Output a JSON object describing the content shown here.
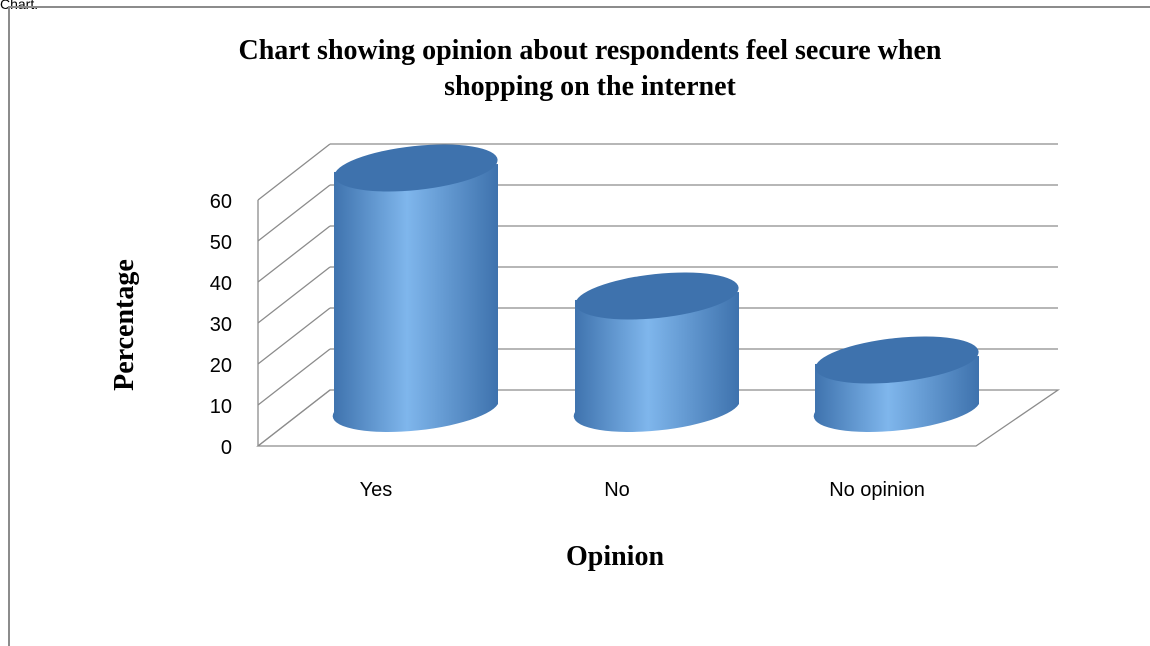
{
  "page": {
    "caption": "Chart."
  },
  "chart_data": {
    "type": "bar",
    "style": "3d-cylinder",
    "title_lines": [
      "Chart showing opinion about respondents feel secure when",
      "shopping on the internet"
    ],
    "xlabel": "Opinion",
    "ylabel": "Percentage",
    "categories": [
      "Yes",
      "No",
      "No opinion"
    ],
    "values": [
      60,
      28,
      12
    ],
    "ylim": [
      0,
      60
    ],
    "yticks": [
      "0",
      "10",
      "20",
      "30",
      "40",
      "50",
      "60"
    ],
    "grid": true,
    "legend": "none",
    "colors": {
      "bar": "#4f8fd6",
      "bar_light": "#7fb6ec",
      "bar_top": "#3e72ad",
      "grid": "#8c8c8c"
    }
  }
}
